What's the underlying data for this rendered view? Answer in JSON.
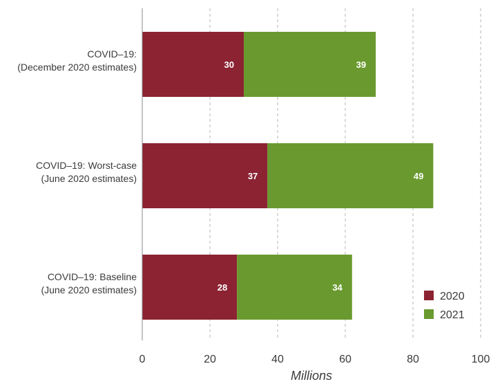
{
  "chart_data": {
    "type": "bar",
    "orientation": "horizontal",
    "stacked": true,
    "categories": [
      [
        "COVID–19:",
        "(December 2020 estimates)"
      ],
      [
        "COVID–19: Worst-case",
        "(June 2020 estimates)"
      ],
      [
        "COVID–19: Baseline",
        "(June 2020 estimates)"
      ]
    ],
    "series": [
      {
        "name": "2020",
        "values": [
          30,
          37,
          28
        ],
        "labels": [
          "30",
          "37",
          "28"
        ],
        "color": "#8b2332"
      },
      {
        "name": "2021",
        "values": [
          39,
          49,
          34
        ],
        "labels": [
          "39",
          "49",
          "34"
        ],
        "color": "#6a9a2f"
      }
    ],
    "xlim": [
      0,
      100
    ],
    "xticks": [
      0,
      20,
      40,
      60,
      80,
      100
    ],
    "xtick_labels": [
      "0",
      "20",
      "40",
      "60",
      "80",
      "100"
    ],
    "xlabel": "Millions",
    "grid": "vertical-dashed",
    "legend_position": "bottom-right"
  }
}
